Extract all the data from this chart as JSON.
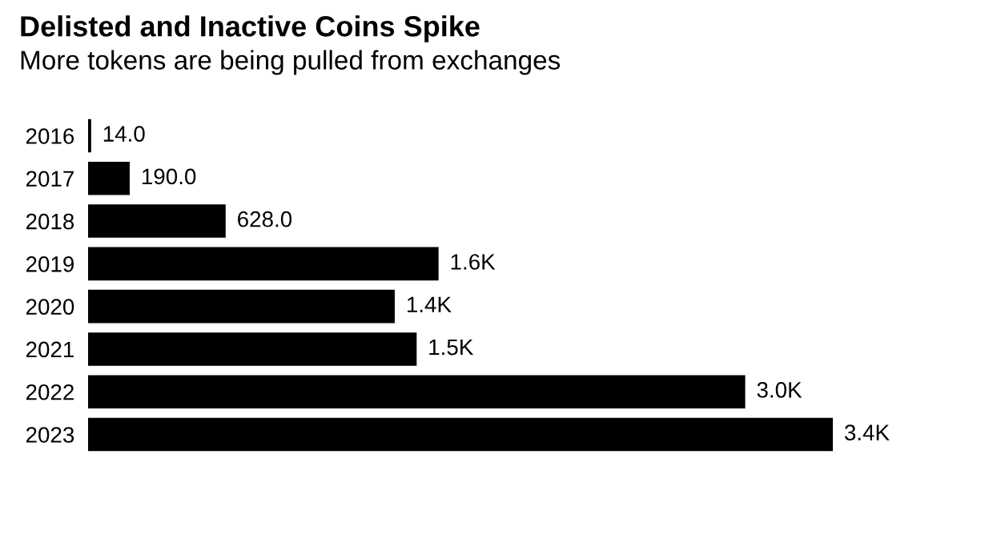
{
  "chart_data": {
    "type": "bar",
    "orientation": "horizontal",
    "title": "Delisted and Inactive Coins Spike",
    "subtitle": "More tokens are being pulled from exchanges",
    "categories": [
      "2016",
      "2017",
      "2018",
      "2019",
      "2020",
      "2021",
      "2022",
      "2023"
    ],
    "values": [
      14,
      190,
      628,
      1600,
      1400,
      1500,
      3000,
      3400
    ],
    "value_labels": [
      "14.0",
      "190.0",
      "628.0",
      "1.6K",
      "1.4K",
      "1.5K",
      "3.0K",
      "3.4K"
    ],
    "color": "#000000",
    "grid": false,
    "legend": false
  }
}
